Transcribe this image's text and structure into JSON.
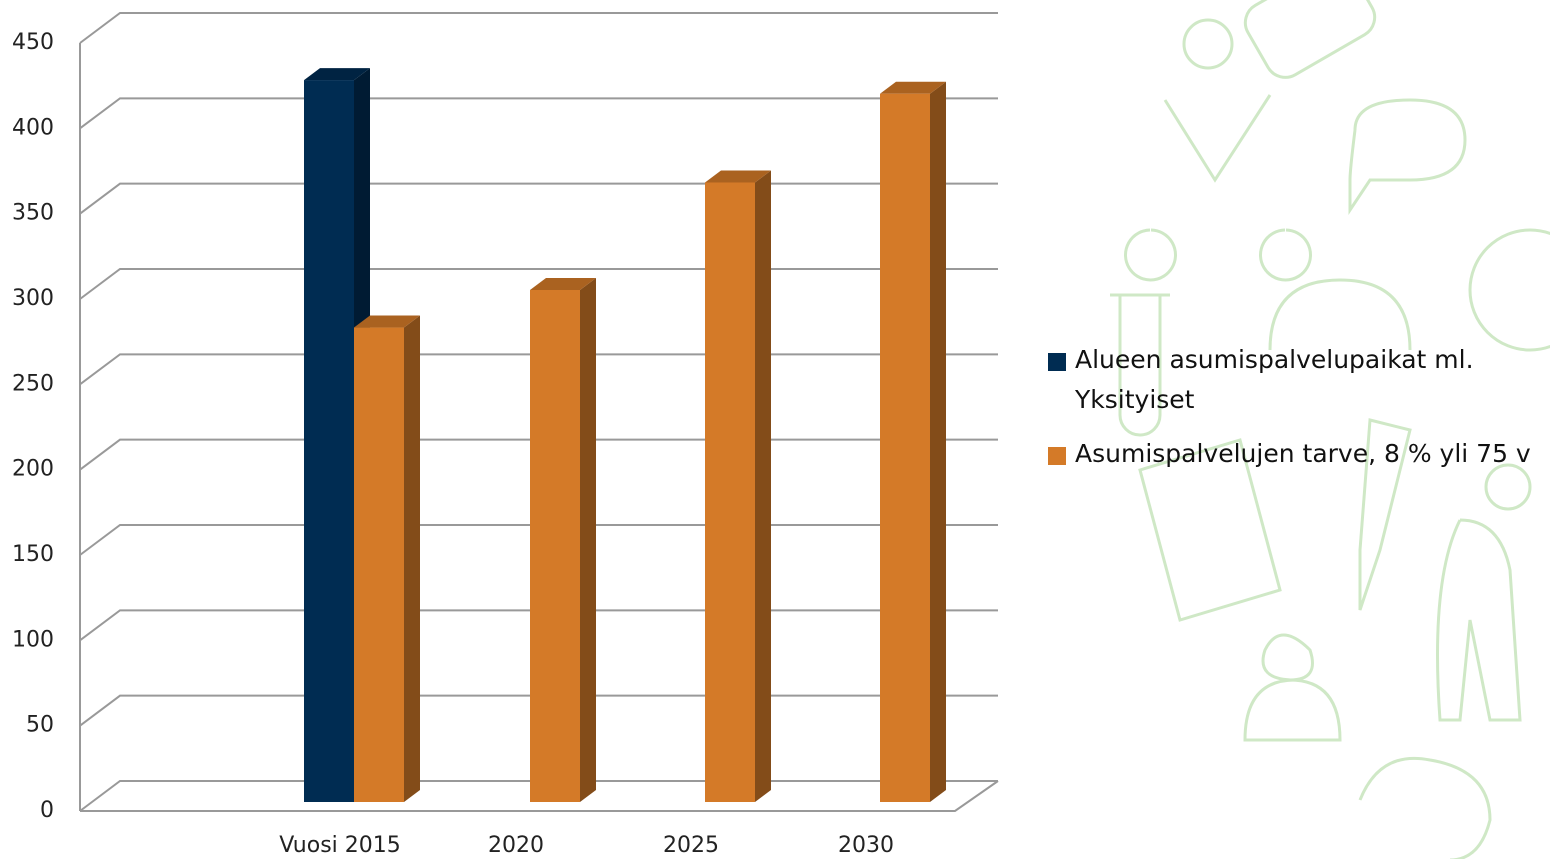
{
  "chart_data": {
    "type": "bar3d",
    "categories": [
      "Vuosi 2015",
      "2020",
      "2025",
      "2030"
    ],
    "series": [
      {
        "name": "Alueen asumispalvelupaikat ml. Yksityiset",
        "color": "#002c52",
        "values": [
          423,
          null,
          null,
          null
        ]
      },
      {
        "name": "Asumispalvelujen tarve, 8 % yli 75 v",
        "color": "#d47a28",
        "values": [
          278,
          300,
          363,
          415
        ]
      }
    ],
    "ylim": [
      0,
      450
    ],
    "yticks": [
      0,
      50,
      100,
      150,
      200,
      250,
      300,
      350,
      400,
      450
    ],
    "grid": true
  }
}
